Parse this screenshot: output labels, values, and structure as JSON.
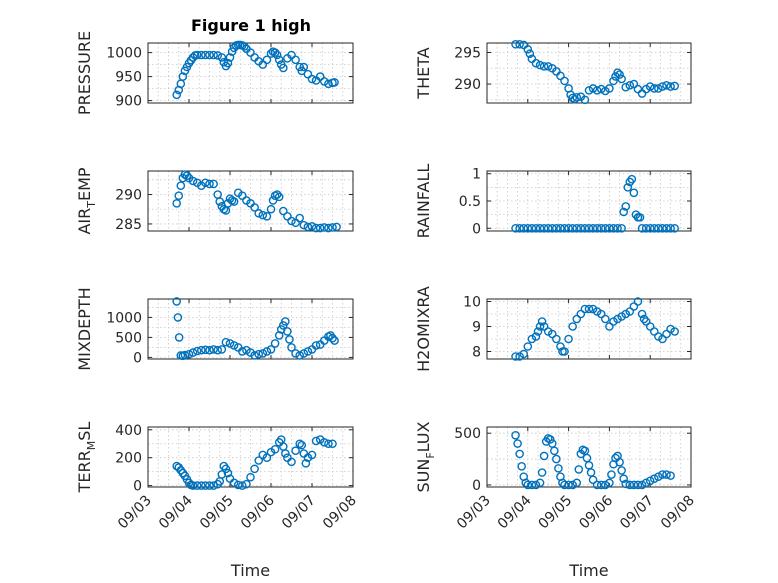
{
  "figure": {
    "title": "Figure 1 high",
    "marker_color": "#0072BD"
  },
  "chart_data": [
    {
      "type": "scatter",
      "title": "Figure 1 high",
      "ylabel": "PRESSURE",
      "ylabel_sub": null,
      "xlabel": "",
      "xlim": [
        3.0,
        8.0
      ],
      "ylim": [
        895,
        1020
      ],
      "yticks": [
        900,
        950,
        1000
      ],
      "ytick_labels": [
        "900",
        "950",
        "1000"
      ],
      "xtick_labels": [],
      "x": [
        3.7,
        3.75,
        3.8,
        3.85,
        3.9,
        3.95,
        4.0,
        4.05,
        4.1,
        4.15,
        4.2,
        4.3,
        4.4,
        4.5,
        4.6,
        4.7,
        4.8,
        4.85,
        4.9,
        4.95,
        5.0,
        5.05,
        5.1,
        5.15,
        5.2,
        5.25,
        5.3,
        5.35,
        5.4,
        5.5,
        5.6,
        5.7,
        5.8,
        5.9,
        6.0,
        6.05,
        6.1,
        6.15,
        6.2,
        6.25,
        6.3,
        6.4,
        6.5,
        6.6,
        6.7,
        6.75,
        6.8,
        6.9,
        7.0,
        7.1,
        7.2,
        7.3,
        7.4,
        7.5,
        7.55
      ],
      "y": [
        912,
        922,
        935,
        950,
        962,
        970,
        978,
        984,
        990,
        994,
        995,
        995,
        995,
        995,
        995,
        994,
        990,
        980,
        972,
        978,
        990,
        1002,
        1010,
        1015,
        1016,
        1016,
        1015,
        1013,
        1008,
        1000,
        990,
        982,
        975,
        985,
        998,
        1002,
        1000,
        995,
        985,
        975,
        968,
        988,
        995,
        985,
        970,
        962,
        970,
        955,
        945,
        942,
        950,
        940,
        935,
        937,
        938
      ]
    },
    {
      "type": "scatter",
      "ylabel": "THETA",
      "ylabel_sub": null,
      "xlabel": "",
      "xlim": [
        3.0,
        8.0
      ],
      "ylim": [
        287,
        296.5
      ],
      "yticks": [
        290,
        295
      ],
      "ytick_labels": [
        "290",
        "295"
      ],
      "xtick_labels": [],
      "x": [
        3.7,
        3.8,
        3.9,
        4.0,
        4.05,
        4.1,
        4.2,
        4.3,
        4.4,
        4.5,
        4.6,
        4.7,
        4.8,
        4.9,
        5.0,
        5.05,
        5.1,
        5.15,
        5.2,
        5.3,
        5.4,
        5.5,
        5.6,
        5.7,
        5.8,
        5.9,
        6.0,
        6.1,
        6.15,
        6.2,
        6.25,
        6.3,
        6.4,
        6.5,
        6.6,
        6.7,
        6.8,
        6.9,
        7.0,
        7.1,
        7.2,
        7.3,
        7.4,
        7.5,
        7.6
      ],
      "y": [
        296.3,
        296.3,
        296.2,
        295.5,
        294.8,
        294.0,
        293.3,
        293.0,
        292.8,
        292.8,
        292.5,
        292.0,
        291.3,
        290.5,
        289.3,
        288.3,
        287.8,
        287.6,
        287.9,
        288.0,
        287.5,
        289.0,
        289.3,
        289.0,
        289.2,
        288.9,
        289.3,
        290.5,
        291.2,
        291.8,
        291.5,
        290.8,
        289.5,
        289.8,
        290.0,
        289.2,
        288.5,
        289.2,
        289.6,
        289.3,
        289.3,
        289.6,
        289.8,
        289.6,
        289.7
      ]
    },
    {
      "type": "scatter",
      "ylabel": "AIR",
      "ylabel_sub": "T",
      "ylabel_tail": "EMP",
      "xlabel": "",
      "xlim": [
        3.0,
        8.0
      ],
      "ylim": [
        283.8,
        294.0
      ],
      "yticks": [
        285,
        290
      ],
      "ytick_labels": [
        "285",
        "290"
      ],
      "xtick_labels": [],
      "x": [
        3.7,
        3.75,
        3.8,
        3.85,
        3.9,
        3.95,
        4.0,
        4.1,
        4.2,
        4.3,
        4.4,
        4.5,
        4.6,
        4.7,
        4.75,
        4.8,
        4.85,
        4.9,
        4.95,
        5.0,
        5.05,
        5.1,
        5.2,
        5.3,
        5.4,
        5.5,
        5.6,
        5.7,
        5.8,
        5.9,
        6.0,
        6.05,
        6.1,
        6.15,
        6.2,
        6.3,
        6.4,
        6.5,
        6.6,
        6.7,
        6.8,
        6.9,
        7.0,
        7.1,
        7.2,
        7.3,
        7.4,
        7.5,
        7.6
      ],
      "y": [
        288.5,
        289.8,
        291.5,
        292.8,
        293.4,
        293.2,
        292.8,
        292.3,
        292.0,
        291.5,
        292.0,
        291.8,
        291.8,
        290.0,
        288.8,
        288.0,
        287.5,
        287.3,
        288.5,
        289.3,
        289.0,
        288.8,
        290.3,
        289.8,
        289.0,
        288.5,
        287.8,
        286.8,
        286.5,
        286.3,
        287.5,
        289.0,
        289.8,
        290.0,
        289.6,
        287.2,
        286.3,
        285.5,
        285.2,
        286.0,
        284.8,
        284.5,
        284.6,
        284.3,
        284.3,
        284.4,
        284.3,
        284.4,
        284.5
      ]
    },
    {
      "type": "scatter",
      "ylabel": "RAINFALL",
      "ylabel_sub": null,
      "xlabel": "",
      "xlim": [
        3.0,
        8.0
      ],
      "ylim": [
        -0.05,
        1.05
      ],
      "yticks": [
        0,
        0.5,
        1
      ],
      "ytick_labels": [
        "0",
        "0.5",
        "1"
      ],
      "xtick_labels": [],
      "x": [
        3.7,
        3.8,
        3.9,
        4.0,
        4.1,
        4.2,
        4.3,
        4.4,
        4.5,
        4.6,
        4.7,
        4.8,
        4.9,
        5.0,
        5.1,
        5.2,
        5.3,
        5.4,
        5.5,
        5.6,
        5.7,
        5.8,
        5.9,
        6.0,
        6.1,
        6.2,
        6.3,
        6.35,
        6.4,
        6.45,
        6.5,
        6.55,
        6.6,
        6.65,
        6.7,
        6.75,
        6.8,
        6.9,
        7.0,
        7.1,
        7.2,
        7.3,
        7.4,
        7.5,
        7.6
      ],
      "y": [
        0,
        0,
        0,
        0,
        0,
        0,
        0,
        0,
        0,
        0,
        0,
        0,
        0,
        0,
        0,
        0,
        0,
        0,
        0,
        0,
        0,
        0,
        0,
        0,
        0,
        0,
        0,
        0.3,
        0.4,
        0.75,
        0.85,
        0.9,
        0.65,
        0.25,
        0.2,
        0.2,
        0,
        0,
        0,
        0,
        0,
        0,
        0,
        0,
        0
      ]
    },
    {
      "type": "scatter",
      "ylabel": "MIXDEPTH",
      "ylabel_sub": null,
      "xlabel": "",
      "xlim": [
        3.0,
        8.0
      ],
      "ylim": [
        -40,
        1460
      ],
      "yticks": [
        0,
        500,
        1000
      ],
      "ytick_labels": [
        "0",
        "500",
        "1000"
      ],
      "xtick_labels": [],
      "x": [
        3.7,
        3.73,
        3.76,
        3.8,
        3.85,
        3.9,
        4.0,
        4.1,
        4.2,
        4.3,
        4.4,
        4.5,
        4.6,
        4.7,
        4.8,
        4.9,
        5.0,
        5.1,
        5.2,
        5.3,
        5.4,
        5.5,
        5.6,
        5.7,
        5.8,
        5.9,
        6.0,
        6.1,
        6.2,
        6.25,
        6.3,
        6.35,
        6.4,
        6.45,
        6.5,
        6.6,
        6.7,
        6.8,
        6.9,
        7.0,
        7.1,
        7.2,
        7.3,
        7.4,
        7.45,
        7.5,
        7.55
      ],
      "y": [
        1400,
        1000,
        500,
        50,
        40,
        60,
        80,
        120,
        160,
        180,
        190,
        180,
        200,
        180,
        200,
        380,
        350,
        300,
        250,
        150,
        180,
        120,
        50,
        80,
        100,
        150,
        200,
        350,
        550,
        700,
        800,
        900,
        650,
        450,
        250,
        100,
        50,
        100,
        150,
        200,
        300,
        320,
        420,
        520,
        550,
        480,
        420
      ]
    },
    {
      "type": "scatter",
      "ylabel": "H2OMIXRA",
      "ylabel_sub": null,
      "xlabel": "",
      "xlim": [
        3.0,
        8.0
      ],
      "ylim": [
        7.7,
        10.1
      ],
      "yticks": [
        8,
        9,
        10
      ],
      "ytick_labels": [
        "8",
        "9",
        "10"
      ],
      "xtick_labels": [],
      "x": [
        3.7,
        3.8,
        3.9,
        4.0,
        4.1,
        4.2,
        4.25,
        4.3,
        4.35,
        4.4,
        4.5,
        4.6,
        4.7,
        4.8,
        4.85,
        4.9,
        5.0,
        5.1,
        5.2,
        5.3,
        5.4,
        5.5,
        5.6,
        5.7,
        5.8,
        5.9,
        6.0,
        6.1,
        6.2,
        6.3,
        6.4,
        6.5,
        6.6,
        6.7,
        6.8,
        6.85,
        6.9,
        7.0,
        7.1,
        7.2,
        7.3,
        7.4,
        7.5,
        7.6
      ],
      "y": [
        7.8,
        7.8,
        7.9,
        8.2,
        8.5,
        8.6,
        8.8,
        9.0,
        9.2,
        9.0,
        8.8,
        8.7,
        8.5,
        8.2,
        8.0,
        8.0,
        8.5,
        9.0,
        9.3,
        9.5,
        9.7,
        9.7,
        9.7,
        9.6,
        9.5,
        9.3,
        9.0,
        9.2,
        9.3,
        9.4,
        9.5,
        9.6,
        9.8,
        10.0,
        9.5,
        9.3,
        9.2,
        9.0,
        8.8,
        8.6,
        8.5,
        8.7,
        8.9,
        8.8
      ]
    },
    {
      "type": "scatter",
      "ylabel": "TERR",
      "ylabel_sub": "M",
      "ylabel_tail": "SL",
      "xlabel": "Time",
      "xlim": [
        3.0,
        8.0
      ],
      "ylim": [
        -10,
        420
      ],
      "yticks": [
        0,
        200,
        400
      ],
      "ytick_labels": [
        "0",
        "200",
        "400"
      ],
      "xticks": [
        3,
        4,
        5,
        6,
        7,
        8
      ],
      "xtick_labels": [
        "09/03",
        "09/04",
        "09/05",
        "09/06",
        "09/07",
        "09/08"
      ],
      "x": [
        3.7,
        3.75,
        3.8,
        3.85,
        3.9,
        3.95,
        4.0,
        4.05,
        4.1,
        4.2,
        4.3,
        4.4,
        4.5,
        4.6,
        4.7,
        4.75,
        4.8,
        4.85,
        4.9,
        4.95,
        5.0,
        5.1,
        5.2,
        5.3,
        5.4,
        5.5,
        5.6,
        5.7,
        5.8,
        5.9,
        6.0,
        6.1,
        6.2,
        6.25,
        6.3,
        6.35,
        6.4,
        6.5,
        6.6,
        6.7,
        6.75,
        6.8,
        6.85,
        6.9,
        7.0,
        7.1,
        7.2,
        7.3,
        7.4,
        7.5
      ],
      "y": [
        140,
        130,
        110,
        90,
        70,
        45,
        20,
        5,
        0,
        0,
        0,
        0,
        0,
        0,
        10,
        30,
        80,
        140,
        120,
        90,
        50,
        20,
        5,
        0,
        10,
        60,
        120,
        180,
        220,
        200,
        240,
        260,
        310,
        330,
        280,
        230,
        200,
        170,
        250,
        300,
        290,
        230,
        160,
        200,
        220,
        320,
        330,
        310,
        300,
        300
      ]
    },
    {
      "type": "scatter",
      "ylabel": "SUN",
      "ylabel_sub": "F",
      "ylabel_tail": "LUX",
      "xlabel": "Time",
      "xlim": [
        3.0,
        8.0
      ],
      "ylim": [
        -20,
        560
      ],
      "yticks": [
        0,
        500
      ],
      "ytick_labels": [
        "0",
        "500"
      ],
      "xticks": [
        3,
        4,
        5,
        6,
        7,
        8
      ],
      "xtick_labels": [
        "09/03",
        "09/04",
        "09/05",
        "09/06",
        "09/07",
        "09/08"
      ],
      "x": [
        3.7,
        3.75,
        3.8,
        3.85,
        3.9,
        3.95,
        4.0,
        4.1,
        4.2,
        4.3,
        4.35,
        4.4,
        4.45,
        4.5,
        4.55,
        4.6,
        4.65,
        4.7,
        4.75,
        4.8,
        4.85,
        4.9,
        5.0,
        5.1,
        5.2,
        5.25,
        5.3,
        5.35,
        5.4,
        5.45,
        5.5,
        5.55,
        5.6,
        5.7,
        5.8,
        5.9,
        6.0,
        6.05,
        6.1,
        6.15,
        6.2,
        6.25,
        6.3,
        6.35,
        6.4,
        6.5,
        6.6,
        6.7,
        6.8,
        6.9,
        7.0,
        7.1,
        7.2,
        7.3,
        7.4,
        7.5
      ],
      "y": [
        480,
        400,
        300,
        180,
        80,
        20,
        0,
        0,
        0,
        20,
        120,
        280,
        420,
        450,
        440,
        400,
        330,
        250,
        160,
        80,
        20,
        0,
        0,
        0,
        20,
        150,
        300,
        340,
        330,
        260,
        190,
        120,
        50,
        0,
        0,
        0,
        20,
        100,
        200,
        260,
        280,
        220,
        140,
        60,
        10,
        0,
        0,
        0,
        0,
        20,
        40,
        60,
        80,
        100,
        100,
        90
      ]
    }
  ]
}
